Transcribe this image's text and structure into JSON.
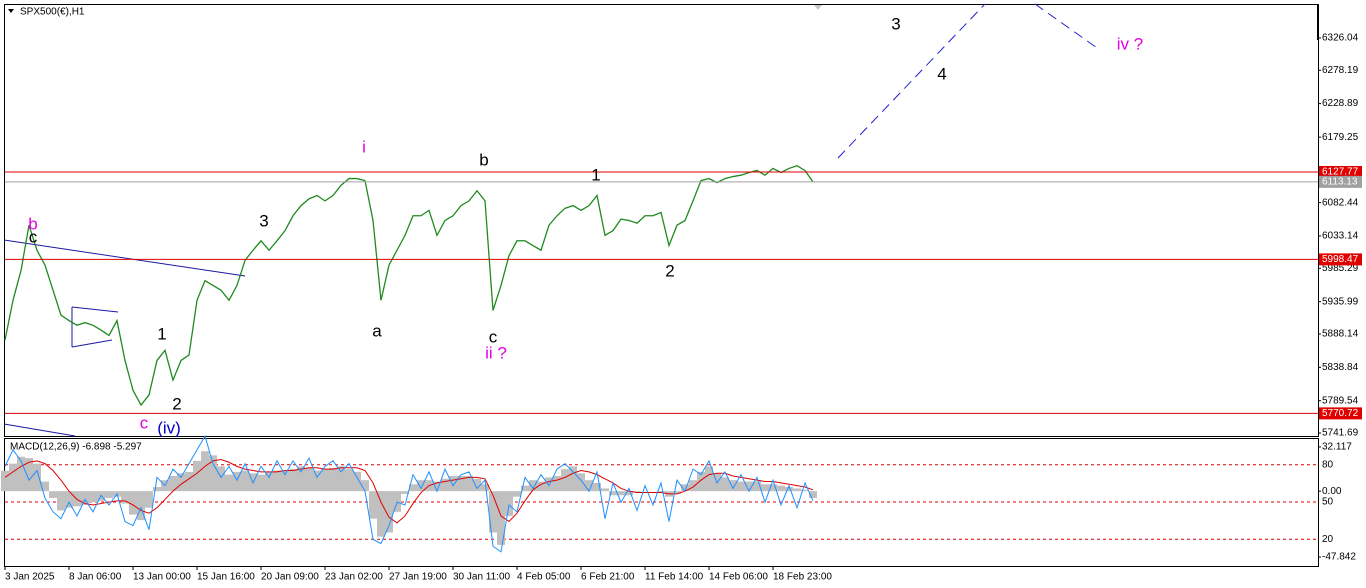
{
  "chart_data": [
    {
      "type": "line",
      "title": "SPX500(€),H1",
      "categories": [
        "3 Jan 2025",
        null,
        null,
        null,
        null,
        null,
        null,
        null,
        "8 Jan 06:00",
        null,
        null,
        null,
        null,
        null,
        null,
        null,
        "13 Jan 00:00",
        null,
        null,
        null,
        null,
        null,
        null,
        null,
        "15 Jan 16:00",
        null,
        null,
        null,
        null,
        null,
        null,
        null,
        "20 Jan 09:00",
        null,
        null,
        null,
        null,
        null,
        null,
        null,
        "23 Jan 02:00",
        null,
        null,
        null,
        null,
        null,
        null,
        null,
        "27 Jan 19:00",
        null,
        null,
        null,
        null,
        null,
        null,
        null,
        "30 Jan 11:00",
        null,
        null,
        null,
        null,
        null,
        null,
        null,
        "4 Feb 05:00",
        null,
        null,
        null,
        null,
        null,
        null,
        null,
        "6 Feb 21:00",
        null,
        null,
        null,
        null,
        null,
        null,
        null,
        "11 Feb 14:00",
        null,
        null,
        null,
        null,
        null,
        null,
        null,
        "14 Feb 06:00",
        null,
        null,
        null,
        null,
        null,
        null,
        null,
        "18 Feb 23:00",
        null,
        null,
        null,
        null,
        null
      ],
      "series": [
        {
          "color": "#1f8a1f",
          "values": [
            5879,
            5938,
            5982,
            6049,
            6012,
            5990,
            5953,
            5916,
            5908,
            5901,
            5905,
            5901,
            5894,
            5886,
            5908,
            5849,
            5805,
            5783,
            5798,
            5849,
            5864,
            5820,
            5849,
            5857,
            5938,
            5967,
            5960,
            5953,
            5938,
            5960,
            5997,
            6012,
            6026,
            6012,
            6026,
            6041,
            6063,
            6078,
            6088,
            6093,
            6085,
            6093,
            6108,
            6118,
            6118,
            6115,
            6056,
            5938,
            5990,
            6012,
            6034,
            6063,
            6063,
            6071,
            6034,
            6056,
            6063,
            6078,
            6085,
            6100,
            6085,
            5923,
            5960,
            6004,
            6026,
            6026,
            6019,
            6012,
            6049,
            6063,
            6074,
            6078,
            6071,
            6078,
            6093,
            6034,
            6041,
            6058,
            6056,
            6052,
            6063,
            6063,
            6068,
            6019,
            6049,
            6056,
            6085,
            6115,
            6118,
            6112,
            6118,
            6121,
            6123,
            6127,
            6130,
            6123,
            6133,
            6127,
            6133,
            6137,
            6130,
            6113
          ]
        }
      ],
      "ylim": [
        5737.26,
        6374.73
      ],
      "yticks": [
        6326.04,
        6278.19,
        6228.89,
        6179.25,
        6082.44,
        6033.14,
        5985.29,
        5935.99,
        5888.14,
        5838.84,
        5789.54,
        5741.69
      ],
      "hlines": [
        {
          "value": 6127.77,
          "color": "#e00000"
        },
        {
          "value": 6113.13,
          "color": "#a0a0a0"
        },
        {
          "value": 5998.47,
          "color": "#e00000"
        },
        {
          "value": 5770.72,
          "color": "#e00000"
        }
      ],
      "annotations": [
        {
          "text": "b",
          "color": "#e000e0"
        },
        {
          "text": "c",
          "color": "#000000"
        },
        {
          "text": "1",
          "color": "#000000"
        },
        {
          "text": "2",
          "color": "#000000"
        },
        {
          "text": "c",
          "color": "#e000e0"
        },
        {
          "text": "(iv)",
          "color": "#0000cc"
        },
        {
          "text": "3",
          "color": "#000000"
        },
        {
          "text": "i",
          "color": "#e000e0"
        },
        {
          "text": "a",
          "color": "#000000"
        },
        {
          "text": "b",
          "color": "#000000"
        },
        {
          "text": "c",
          "color": "#000000"
        },
        {
          "text": "ii ?",
          "color": "#e000e0"
        },
        {
          "text": "1",
          "color": "#000000"
        },
        {
          "text": "2",
          "color": "#000000"
        },
        {
          "text": "3",
          "color": "#000000"
        },
        {
          "text": "4",
          "color": "#000000"
        },
        {
          "text": "iv ?",
          "color": "#e000e0"
        }
      ]
    },
    {
      "type": "macd",
      "title": "MACD(12,26,9) -6.898 -5.297",
      "series": [
        {
          "style": "bar",
          "color": "#c0c0c0",
          "values": [
            14.8,
            20,
            25,
            24,
            20,
            7,
            -5,
            -14,
            -12,
            -11,
            -10,
            -8,
            -7,
            -5,
            -4,
            -9,
            -17,
            -21,
            -12,
            3,
            8,
            11,
            13,
            14,
            22,
            29,
            26,
            18,
            12,
            14,
            15,
            13,
            12,
            14,
            15,
            15,
            16,
            18,
            17,
            15,
            16,
            17,
            18,
            16,
            14,
            8,
            -20,
            -33,
            -30,
            -15,
            -2,
            5,
            8,
            8,
            7,
            9,
            11,
            11,
            11,
            9,
            5,
            -30,
            -39,
            -18,
            -4,
            4,
            8,
            7,
            10,
            11,
            16,
            18,
            13,
            8,
            6,
            2,
            -3,
            -3,
            -3,
            -1,
            0,
            0,
            -1,
            -4,
            -2,
            5,
            8,
            14,
            18,
            13,
            10,
            8,
            7,
            7,
            7,
            5,
            5,
            4,
            3,
            2,
            1,
            -5
          ]
        },
        {
          "style": "line",
          "color": "#e00000",
          "values": [
            10,
            14,
            18,
            21,
            22,
            20,
            15,
            8,
            0,
            -6,
            -9,
            -10,
            -9,
            -8,
            -7,
            -7,
            -10,
            -14,
            -16,
            -12,
            -6,
            0,
            5,
            9,
            13,
            18,
            22,
            23,
            21,
            18,
            16,
            15,
            14,
            14,
            14,
            15,
            15,
            16,
            17,
            17,
            16,
            16,
            17,
            17,
            17,
            15,
            6,
            -8,
            -19,
            -23,
            -18,
            -9,
            -1,
            4,
            6,
            7,
            8,
            9,
            10,
            10,
            9,
            -3,
            -18,
            -22,
            -16,
            -7,
            1,
            5,
            7,
            8,
            10,
            13,
            15,
            14,
            12,
            9,
            6,
            2,
            0,
            -1,
            -1,
            -1,
            -1,
            -2,
            -2,
            0,
            3,
            8,
            12,
            13,
            13,
            11,
            10,
            9,
            8,
            7,
            7,
            6,
            5,
            4,
            3,
            1
          ]
        },
        {
          "style": "line",
          "color": "#1e90ff",
          "values": [
            18,
            30,
            22,
            8,
            15,
            -5,
            -15,
            -20,
            -8,
            -18,
            -6,
            -15,
            -3,
            -10,
            -2,
            -22,
            -25,
            -12,
            -28,
            10,
            4,
            16,
            10,
            20,
            30,
            40,
            20,
            10,
            18,
            8,
            20,
            6,
            18,
            10,
            22,
            12,
            22,
            14,
            24,
            10,
            18,
            22,
            14,
            20,
            10,
            0,
            -35,
            -38,
            -25,
            -8,
            -10,
            12,
            2,
            14,
            0,
            16,
            4,
            12,
            14,
            2,
            8,
            -40,
            -44,
            -10,
            -15,
            10,
            2,
            12,
            4,
            16,
            20,
            14,
            8,
            0,
            14,
            -20,
            6,
            -8,
            2,
            -14,
            4,
            -10,
            6,
            -22,
            8,
            0,
            16,
            12,
            22,
            6,
            14,
            2,
            12,
            0,
            10,
            -8,
            8,
            -10,
            4,
            -12,
            6,
            -7
          ]
        }
      ],
      "ylim": [
        -54.33,
        37.88
      ],
      "yticks": [
        32.117,
        {
          "value": 0,
          "label": "0.00"
        },
        -47.842
      ],
      "y2lim": [
        -1.6,
        100.8
      ],
      "y2ticks": [
        80,
        50,
        20
      ]
    }
  ]
}
